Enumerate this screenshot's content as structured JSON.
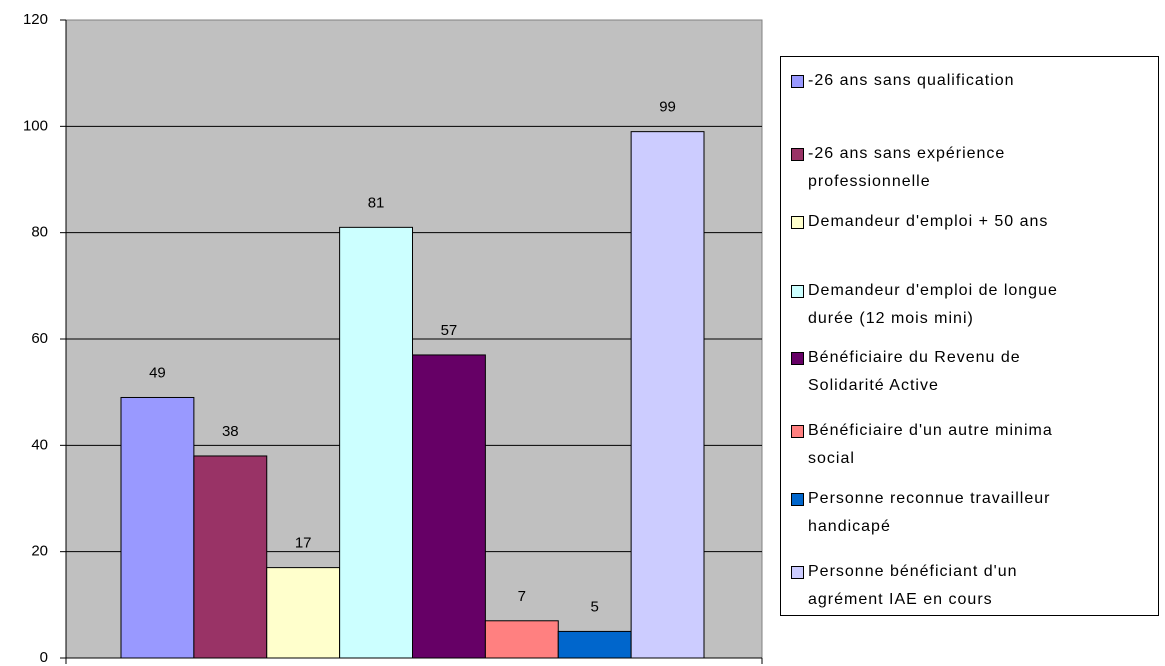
{
  "chart_data": {
    "type": "bar",
    "series": [
      {
        "name": "-26 ans sans qualification",
        "color": "#9999ff",
        "values": [
          49
        ]
      },
      {
        "name": "-26 ans sans expérience professionnelle",
        "color": "#993366",
        "values": [
          38
        ]
      },
      {
        "name": "Demandeur d'emploi + 50 ans",
        "color": "#ffffcc",
        "values": [
          17
        ]
      },
      {
        "name": "Demandeur d'emploi de longue durée (12 mois mini)",
        "color": "#ccffff",
        "values": [
          81
        ]
      },
      {
        "name": "Bénéficiaire du Revenu de Solidarité Active",
        "color": "#660066",
        "values": [
          57
        ]
      },
      {
        "name": "Bénéficiaire d'un autre minima social",
        "color": "#ff8080",
        "values": [
          7
        ]
      },
      {
        "name": "Personne reconnue travailleur handicapé",
        "color": "#0066cc",
        "values": [
          5
        ]
      },
      {
        "name": "Personne bénéficiant d'un agrément IAE en cours",
        "color": "#ccccff",
        "values": [
          99
        ]
      }
    ],
    "ylim": [
      0,
      120
    ],
    "yticks": [
      0,
      20,
      40,
      60,
      80,
      100,
      120
    ],
    "grid": true,
    "legend": "right"
  }
}
